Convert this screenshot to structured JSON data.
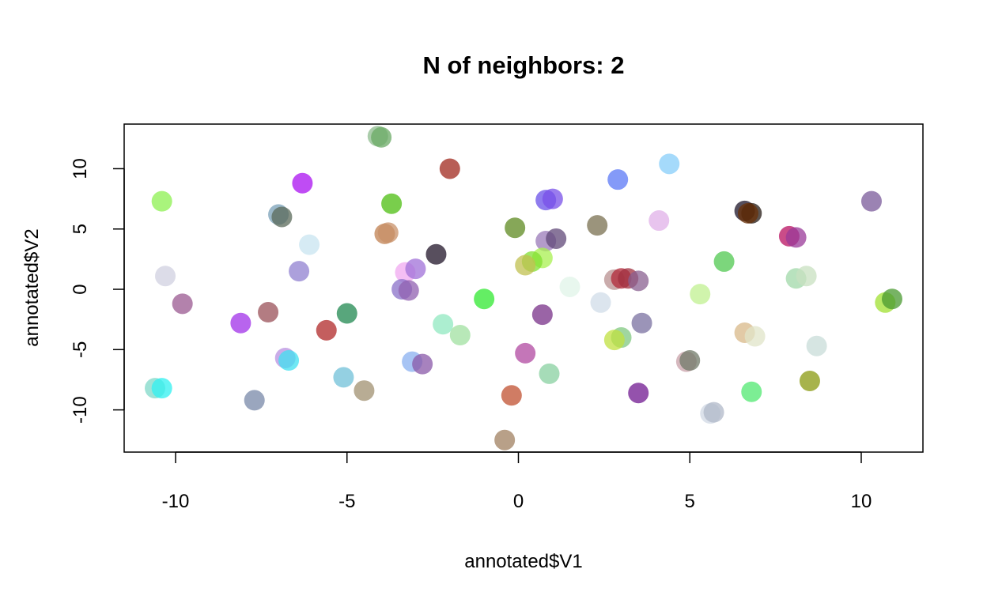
{
  "chart_data": {
    "type": "scatter",
    "title": "N of neighbors: 2",
    "xlabel": "annotated$V1",
    "ylabel": "annotated$V2",
    "xlim": [
      -11.5,
      11.8
    ],
    "ylim": [
      -13.5,
      13.7
    ],
    "xticks": [
      -10,
      -5,
      0,
      5,
      10
    ],
    "yticks": [
      -10,
      -5,
      0,
      5,
      10
    ],
    "grid": false,
    "legend": "none",
    "points": [
      {
        "x": -4.1,
        "y": 12.7,
        "color": "#8fbc8f"
      },
      {
        "x": -4.0,
        "y": 12.6,
        "color": "#6aaa64"
      },
      {
        "x": -2.0,
        "y": 10.0,
        "color": "#a0281e"
      },
      {
        "x": 4.4,
        "y": 10.4,
        "color": "#87cefa"
      },
      {
        "x": 2.9,
        "y": 9.1,
        "color": "#5b78f5"
      },
      {
        "x": -6.3,
        "y": 8.8,
        "color": "#aa10f0"
      },
      {
        "x": -10.4,
        "y": 7.3,
        "color": "#8cf050"
      },
      {
        "x": -3.7,
        "y": 7.1,
        "color": "#4cbe10"
      },
      {
        "x": 0.8,
        "y": 7.4,
        "color": "#6a50e8"
      },
      {
        "x": 1.0,
        "y": 7.5,
        "color": "#7850e8"
      },
      {
        "x": 10.3,
        "y": 7.3,
        "color": "#7a5a9a"
      },
      {
        "x": -7.0,
        "y": 6.2,
        "color": "#7aa0b8"
      },
      {
        "x": -6.9,
        "y": 6.0,
        "color": "#5a6a5a"
      },
      {
        "x": 6.6,
        "y": 6.5,
        "color": "#1c1428"
      },
      {
        "x": 6.8,
        "y": 6.3,
        "color": "#241a14"
      },
      {
        "x": 6.7,
        "y": 6.3,
        "color": "#6a3008"
      },
      {
        "x": 4.1,
        "y": 5.7,
        "color": "#e0b0e8"
      },
      {
        "x": 2.3,
        "y": 5.3,
        "color": "#7a7050"
      },
      {
        "x": -0.1,
        "y": 5.1,
        "color": "#5e8a20"
      },
      {
        "x": -3.9,
        "y": 4.6,
        "color": "#c08050"
      },
      {
        "x": -3.8,
        "y": 4.7,
        "color": "#c89068"
      },
      {
        "x": -6.1,
        "y": 3.7,
        "color": "#c8e4f0"
      },
      {
        "x": 0.8,
        "y": 4.0,
        "color": "#9a7ab8"
      },
      {
        "x": 1.1,
        "y": 4.2,
        "color": "#604878"
      },
      {
        "x": 7.9,
        "y": 4.4,
        "color": "#b81060"
      },
      {
        "x": 8.1,
        "y": 4.3,
        "color": "#9a3a98"
      },
      {
        "x": -2.4,
        "y": 2.9,
        "color": "#201428"
      },
      {
        "x": 6.0,
        "y": 2.3,
        "color": "#50c850"
      },
      {
        "x": 0.7,
        "y": 2.6,
        "color": "#a8f050"
      },
      {
        "x": 0.4,
        "y": 2.3,
        "color": "#80e030"
      },
      {
        "x": 0.2,
        "y": 2.0,
        "color": "#c0c050"
      },
      {
        "x": -3.3,
        "y": 1.4,
        "color": "#f0a8f0"
      },
      {
        "x": -3.0,
        "y": 1.7,
        "color": "#a070d8"
      },
      {
        "x": -6.4,
        "y": 1.5,
        "color": "#9080d0"
      },
      {
        "x": -10.3,
        "y": 1.1,
        "color": "#d0d0e0"
      },
      {
        "x": 1.5,
        "y": 0.2,
        "color": "#e0f4e8"
      },
      {
        "x": 2.8,
        "y": 0.8,
        "color": "#b89090"
      },
      {
        "x": 3.0,
        "y": 0.9,
        "color": "#b02838"
      },
      {
        "x": 3.2,
        "y": 0.9,
        "color": "#a03040"
      },
      {
        "x": 3.5,
        "y": 0.7,
        "color": "#8a6090"
      },
      {
        "x": 8.1,
        "y": 0.9,
        "color": "#a0d8a8"
      },
      {
        "x": 8.4,
        "y": 1.1,
        "color": "#c8e0c0"
      },
      {
        "x": -3.4,
        "y": 0.0,
        "color": "#8a70c8"
      },
      {
        "x": -3.2,
        "y": -0.1,
        "color": "#9060b0"
      },
      {
        "x": 5.3,
        "y": -0.4,
        "color": "#c0f090"
      },
      {
        "x": -1.0,
        "y": -0.8,
        "color": "#30e830"
      },
      {
        "x": 2.4,
        "y": -1.1,
        "color": "#d0dce8"
      },
      {
        "x": 10.7,
        "y": -1.1,
        "color": "#a0e030"
      },
      {
        "x": 10.9,
        "y": -0.8,
        "color": "#4a9a30"
      },
      {
        "x": -9.8,
        "y": -1.2,
        "color": "#9a5890"
      },
      {
        "x": -7.3,
        "y": -1.9,
        "color": "#9a5058"
      },
      {
        "x": -5.0,
        "y": -2.0,
        "color": "#208850"
      },
      {
        "x": 0.7,
        "y": -2.1,
        "color": "#783088"
      },
      {
        "x": -8.1,
        "y": -2.8,
        "color": "#a030e8"
      },
      {
        "x": -2.2,
        "y": -2.9,
        "color": "#90e8c0"
      },
      {
        "x": 3.6,
        "y": -2.8,
        "color": "#7a70a0"
      },
      {
        "x": -5.6,
        "y": -3.4,
        "color": "#b02828"
      },
      {
        "x": 6.6,
        "y": -3.6,
        "color": "#d8b888"
      },
      {
        "x": 6.9,
        "y": -3.9,
        "color": "#e0e4c8"
      },
      {
        "x": -1.7,
        "y": -3.8,
        "color": "#a0e0a0"
      },
      {
        "x": 3.0,
        "y": -4.0,
        "color": "#80c880"
      },
      {
        "x": 2.8,
        "y": -4.2,
        "color": "#c0e040"
      },
      {
        "x": 8.7,
        "y": -4.7,
        "color": "#c8dcd8"
      },
      {
        "x": 0.2,
        "y": -5.3,
        "color": "#b048a0"
      },
      {
        "x": -6.8,
        "y": -5.7,
        "color": "#b890e0"
      },
      {
        "x": -6.7,
        "y": -5.9,
        "color": "#40e0f0"
      },
      {
        "x": -3.1,
        "y": -6.0,
        "color": "#8ab0f0"
      },
      {
        "x": -2.8,
        "y": -6.2,
        "color": "#8a58a8"
      },
      {
        "x": 4.9,
        "y": -6.0,
        "color": "#c8a0a8"
      },
      {
        "x": 5.0,
        "y": -5.9,
        "color": "#707a68"
      },
      {
        "x": 0.9,
        "y": -7.0,
        "color": "#88d0a0"
      },
      {
        "x": -5.1,
        "y": -7.3,
        "color": "#70c0d8"
      },
      {
        "x": 8.5,
        "y": -7.6,
        "color": "#8a9a10"
      },
      {
        "x": -10.6,
        "y": -8.2,
        "color": "#80d8c8"
      },
      {
        "x": -10.4,
        "y": -8.2,
        "color": "#30f0f0"
      },
      {
        "x": -4.5,
        "y": -8.4,
        "color": "#a09070"
      },
      {
        "x": 6.8,
        "y": -8.5,
        "color": "#50e870"
      },
      {
        "x": 3.5,
        "y": -8.6,
        "color": "#701890"
      },
      {
        "x": -0.2,
        "y": -8.8,
        "color": "#c05030"
      },
      {
        "x": -7.7,
        "y": -9.2,
        "color": "#7888a8"
      },
      {
        "x": 5.6,
        "y": -10.3,
        "color": "#d0d8e4"
      },
      {
        "x": 5.7,
        "y": -10.2,
        "color": "#b0b8c8"
      },
      {
        "x": -0.4,
        "y": -12.5,
        "color": "#a08060"
      }
    ]
  }
}
